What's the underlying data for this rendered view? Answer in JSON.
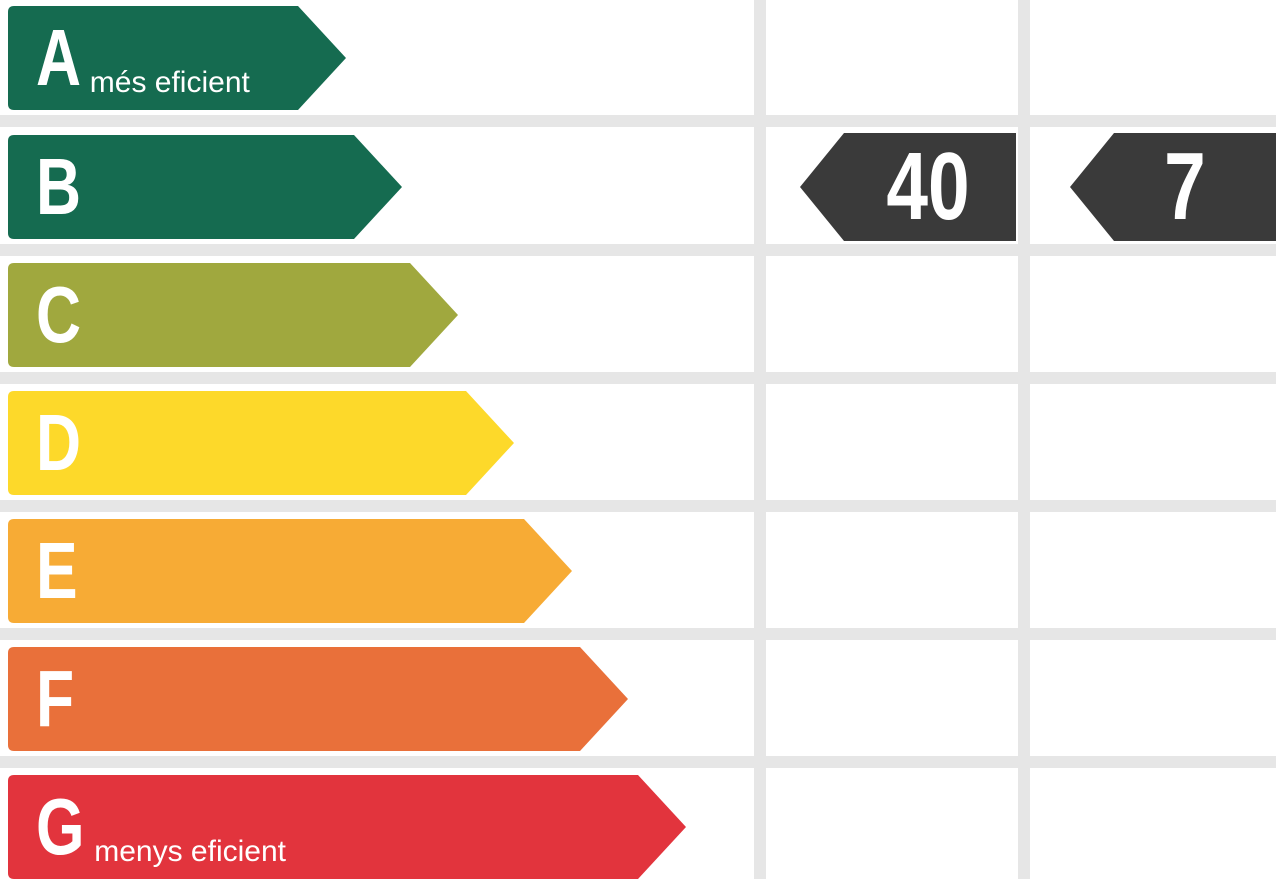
{
  "energy_scale": {
    "ratings": [
      {
        "letter": "A",
        "description": "més eficient",
        "color": "#156b50"
      },
      {
        "letter": "B",
        "description": "",
        "color": "#156b50"
      },
      {
        "letter": "C",
        "description": "",
        "color": "#a0a83e"
      },
      {
        "letter": "D",
        "description": "",
        "color": "#fdd92a"
      },
      {
        "letter": "E",
        "description": "",
        "color": "#f7ab35"
      },
      {
        "letter": "F",
        "description": "",
        "color": "#e9703a"
      },
      {
        "letter": "G",
        "description": "menys eficient",
        "color": "#e2343d"
      }
    ]
  },
  "indicators": {
    "color": "#3a3a3a",
    "rating_row": "B",
    "items": [
      {
        "value": "40"
      },
      {
        "value": "7"
      }
    ]
  }
}
